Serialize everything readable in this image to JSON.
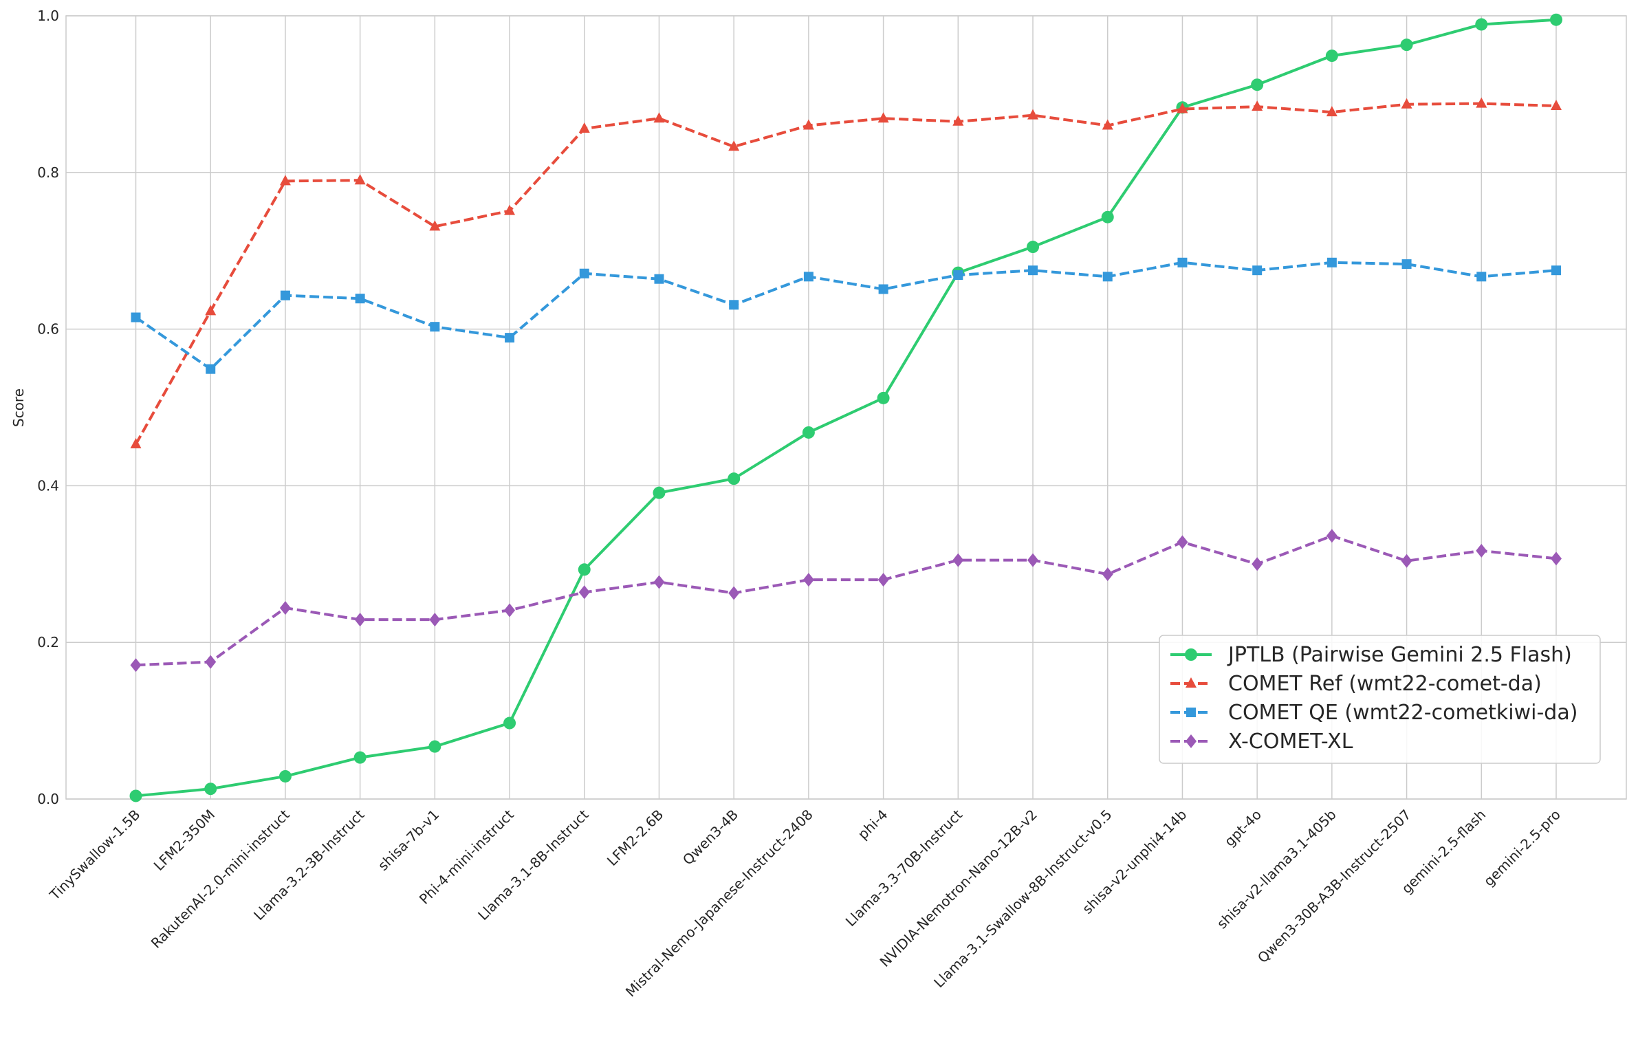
{
  "chart_data": {
    "type": "line",
    "title": "",
    "xlabel": "",
    "ylabel": "Score",
    "ylim": [
      0,
      1.0
    ],
    "yticks": [
      "0.0",
      "0.2",
      "0.4",
      "0.6",
      "0.8",
      "1.0"
    ],
    "grid": true,
    "legend_position": "lower-right",
    "categories": [
      "TinySwallow-1.5B",
      "LFM2-350M",
      "RakutenAI-2.0-mini-instruct",
      "Llama-3.2-3B-Instruct",
      "shisa-7b-v1",
      "Phi-4-mini-instruct",
      "Llama-3.1-8B-Instruct",
      "LFM2-2.6B",
      "Qwen3-4B",
      "Mistral-Nemo-Japanese-Instruct-2408",
      "phi-4",
      "Llama-3.3-70B-Instruct",
      "NVIDIA-Nemotron-Nano-12B-v2",
      "Llama-3.1-Swallow-8B-Instruct-v0.5",
      "shisa-v2-unphi4-14b",
      "gpt-4o",
      "shisa-v2-llama3.1-405b",
      "Qwen3-30B-A3B-Instruct-2507",
      "gemini-2.5-flash",
      "gemini-2.5-pro"
    ],
    "series": [
      {
        "name": "JPTLB (Pairwise Gemini 2.5 Flash)",
        "color": "#2ecc71",
        "style": "solid",
        "marker": "circle",
        "values": [
          0.004,
          0.013,
          0.029,
          0.053,
          0.067,
          0.097,
          0.293,
          0.391,
          0.409,
          0.468,
          0.512,
          0.672,
          0.705,
          0.743,
          0.883,
          0.912,
          0.949,
          0.963,
          0.989,
          0.995
        ]
      },
      {
        "name": "COMET Ref (wmt22-comet-da)",
        "color": "#e74c3c",
        "style": "dashed",
        "marker": "triangle",
        "values": [
          0.453,
          0.623,
          0.789,
          0.79,
          0.731,
          0.751,
          0.856,
          0.869,
          0.833,
          0.86,
          0.869,
          0.865,
          0.873,
          0.86,
          0.881,
          0.884,
          0.877,
          0.887,
          0.888,
          0.885
        ]
      },
      {
        "name": "COMET QE (wmt22-cometkiwi-da)",
        "color": "#3498db",
        "style": "dashed",
        "marker": "square",
        "values": [
          0.615,
          0.549,
          0.643,
          0.639,
          0.603,
          0.589,
          0.671,
          0.664,
          0.631,
          0.667,
          0.651,
          0.669,
          0.675,
          0.667,
          0.685,
          0.675,
          0.685,
          0.683,
          0.667,
          0.675
        ]
      },
      {
        "name": "X-COMET-XL",
        "color": "#9b59b6",
        "style": "dashed",
        "marker": "diamond",
        "values": [
          0.171,
          0.175,
          0.244,
          0.229,
          0.229,
          0.241,
          0.264,
          0.277,
          0.263,
          0.28,
          0.28,
          0.305,
          0.305,
          0.287,
          0.328,
          0.3,
          0.336,
          0.304,
          0.317,
          0.307
        ]
      }
    ]
  }
}
